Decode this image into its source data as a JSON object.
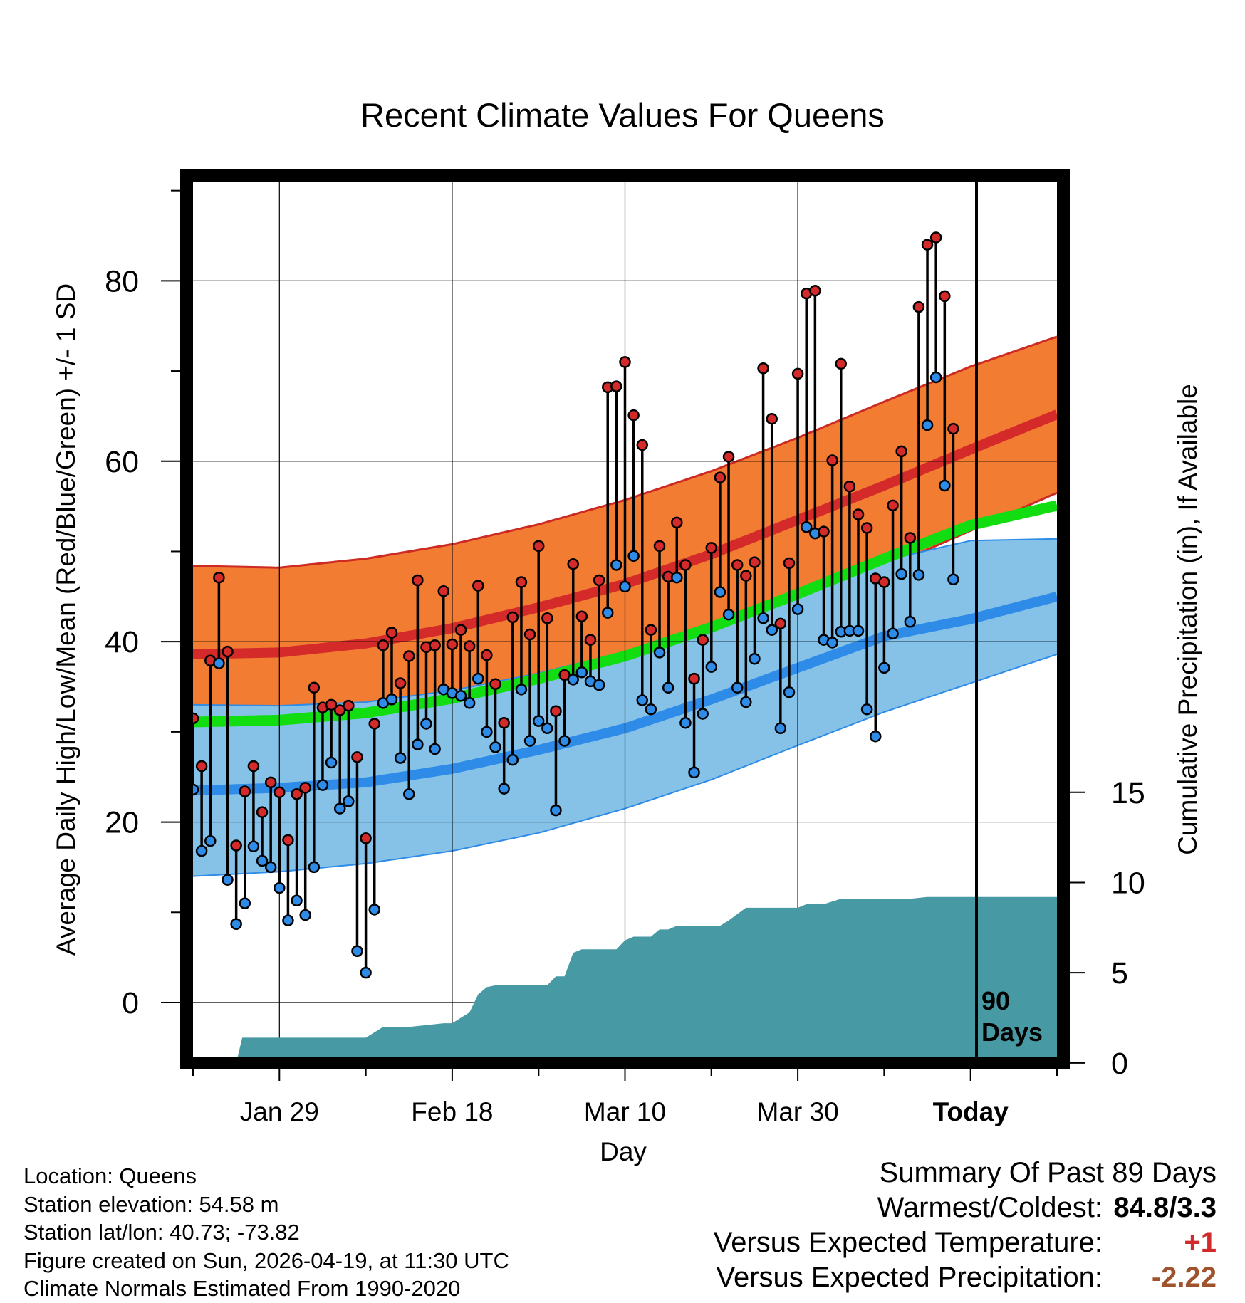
{
  "chart_data": {
    "type": "line",
    "title": "Recent Climate Values For Queens",
    "xlabel": "Day",
    "ylabel": "Average Daily High/Low/Mean (Red/Blue/Green) +/- 1 SD",
    "y2label": "Cumulative Precipitation (in), If Available",
    "xlim": [
      1,
      101
    ],
    "ylim": [
      -6,
      91
    ],
    "y_ticks": [
      "0",
      "20",
      "40",
      "60",
      "80"
    ],
    "y_tick_values": [
      0,
      20,
      40,
      60,
      80
    ],
    "y2_ticks": [
      "0",
      "5",
      "10",
      "15"
    ],
    "y2_tick_values": [
      0,
      5,
      10,
      15
    ],
    "y2_scale": {
      "zero_at": -6.7,
      "per_inch": 2.0
    },
    "x_ticks": [
      {
        "label": "Jan 29",
        "day": 11
      },
      {
        "label": "Feb 18",
        "day": 31
      },
      {
        "label": "Mar 10",
        "day": 51
      },
      {
        "label": "Mar 30",
        "day": 71
      },
      {
        "label": "Today",
        "day": 91
      }
    ],
    "today_marker": {
      "day": 91,
      "label_line1": "90",
      "label_line2": "Days"
    },
    "normals": {
      "days": [
        1,
        11,
        21,
        31,
        41,
        51,
        61,
        71,
        81,
        91,
        101
      ],
      "high_mean": [
        38.6,
        38.8,
        39.8,
        41.5,
        43.8,
        46.4,
        49.7,
        53.5,
        57.3,
        61.3,
        65.2
      ],
      "high_upper": [
        48.4,
        48.2,
        49.2,
        50.8,
        53.0,
        55.7,
        58.9,
        62.6,
        66.6,
        70.5,
        73.8
      ],
      "high_lower": [
        29.0,
        29.6,
        30.5,
        32.3,
        34.6,
        37.2,
        40.5,
        44.3,
        48.1,
        52.3,
        56.5
      ],
      "mean_mean": [
        31.1,
        31.3,
        32.1,
        33.7,
        35.9,
        38.4,
        41.6,
        45.3,
        49.2,
        52.9,
        55.1
      ],
      "low_mean": [
        23.5,
        23.8,
        24.4,
        25.9,
        28.0,
        30.4,
        33.6,
        37.1,
        40.6,
        42.5,
        45.0
      ],
      "low_upper": [
        33.0,
        32.9,
        33.3,
        34.6,
        36.5,
        38.9,
        41.9,
        45.3,
        49.0,
        51.2,
        51.4
      ],
      "low_lower": [
        14.0,
        14.5,
        15.4,
        16.8,
        18.8,
        21.5,
        24.7,
        28.5,
        32.2,
        35.4,
        38.6
      ]
    },
    "observations": {
      "highs": [
        31.5,
        26.2,
        37.9,
        47.1,
        38.9,
        17.4,
        23.4,
        26.2,
        21.1,
        24.4,
        23.3,
        18.0,
        23.1,
        23.8,
        34.9,
        32.7,
        33.0,
        32.4,
        32.9,
        27.2,
        18.2,
        30.9,
        39.6,
        41.0,
        35.4,
        38.4,
        46.8,
        39.4,
        39.6,
        45.6,
        39.7,
        41.3,
        39.5,
        46.2,
        38.5,
        35.3,
        31.0,
        42.7,
        46.6,
        40.8,
        50.6,
        42.6,
        32.3,
        36.3,
        48.6,
        42.8,
        40.2,
        46.8,
        68.2,
        68.3,
        71.0,
        65.1,
        61.8,
        41.3,
        50.6,
        47.2,
        53.2,
        48.5,
        35.9,
        40.2,
        50.4,
        58.2,
        60.5,
        48.5,
        47.3,
        48.8,
        70.3,
        64.7,
        42.0,
        48.7,
        69.7,
        78.6,
        78.9,
        52.2,
        60.1,
        70.8,
        57.2,
        54.1,
        52.6,
        47.0,
        46.6,
        55.1,
        61.1,
        51.5,
        77.1,
        84.0,
        84.8,
        78.3,
        63.6
      ],
      "lows": [
        23.6,
        16.8,
        17.9,
        37.6,
        13.6,
        8.7,
        11.0,
        17.3,
        15.7,
        15.0,
        12.7,
        9.1,
        11.3,
        9.7,
        15.0,
        24.1,
        26.6,
        21.5,
        22.3,
        5.7,
        3.3,
        10.3,
        33.2,
        33.6,
        27.1,
        23.1,
        28.6,
        30.9,
        28.1,
        34.7,
        34.3,
        34.0,
        33.2,
        35.9,
        30.0,
        28.3,
        23.7,
        26.9,
        34.7,
        29.0,
        31.2,
        30.4,
        21.3,
        29.0,
        35.8,
        36.6,
        35.6,
        35.2,
        43.2,
        48.5,
        46.1,
        49.5,
        33.5,
        32.5,
        38.8,
        34.9,
        47.1,
        31.0,
        25.5,
        32.0,
        37.2,
        45.5,
        43.0,
        34.9,
        33.3,
        38.1,
        42.6,
        41.3,
        30.4,
        34.4,
        43.6,
        52.7,
        52.0,
        40.2,
        39.9,
        41.1,
        41.2,
        41.2,
        32.5,
        29.5,
        37.1,
        40.9,
        47.5,
        42.2,
        47.4,
        64.0,
        69.3,
        57.3,
        46.9
      ]
    },
    "precipitation": {
      "days": [
        1,
        6,
        6.7,
        7,
        12,
        15,
        21,
        23,
        24,
        26,
        28,
        30,
        31,
        33,
        34,
        35,
        36,
        37,
        38,
        39,
        40,
        41,
        42,
        43,
        44,
        45,
        46,
        47,
        48,
        50,
        51,
        52,
        53,
        54,
        55,
        56,
        57,
        58,
        59,
        62,
        63,
        65,
        66,
        67,
        68,
        69,
        70,
        71,
        72,
        74,
        76,
        78,
        80,
        82,
        84,
        86,
        88,
        90,
        91,
        101
      ],
      "cumulative": [
        0.0,
        0.0,
        1.4,
        1.4,
        1.4,
        1.4,
        1.4,
        2.0,
        2.0,
        2.0,
        2.1,
        2.2,
        2.2,
        2.8,
        3.8,
        4.2,
        4.3,
        4.3,
        4.3,
        4.3,
        4.3,
        4.3,
        4.3,
        4.8,
        4.8,
        6.1,
        6.3,
        6.3,
        6.3,
        6.3,
        6.8,
        7.0,
        7.0,
        7.0,
        7.4,
        7.4,
        7.6,
        7.6,
        7.6,
        7.6,
        7.9,
        8.6,
        8.6,
        8.6,
        8.6,
        8.6,
        8.6,
        8.6,
        8.8,
        8.8,
        9.1,
        9.1,
        9.1,
        9.1,
        9.1,
        9.2,
        9.2,
        9.2,
        9.2,
        9.2
      ]
    },
    "legend": "none"
  },
  "footer": {
    "location": "Location: Queens",
    "elevation": "Station elevation: 54.58 m",
    "latlon": "Station lat/lon: 40.73; -73.82",
    "created": "Figure created on Sun, 2026-04-19, at 11:30 UTC",
    "normals": "Climate Normals Estimated From 1990-2020"
  },
  "summary": {
    "title": "Summary Of Past 89 Days",
    "warmest_label": "Warmest/Coldest:",
    "warmest_value": "84.8/3.3",
    "temp_label": "Versus Expected Temperature:",
    "temp_value": "+1",
    "precip_label": "Versus Expected Precipitation:",
    "precip_value": "-2.22"
  },
  "colors": {
    "high_band": "#f27c32",
    "high_line": "#d42a2a",
    "high_band_edge": "#cc2a22",
    "low_band": "#86c2e8",
    "low_line": "#2e8ce8",
    "mean_line": "#11dd11",
    "precip_fill": "#479aa4",
    "high_dot": "#d42a2a",
    "low_dot": "#2e8ce8"
  }
}
